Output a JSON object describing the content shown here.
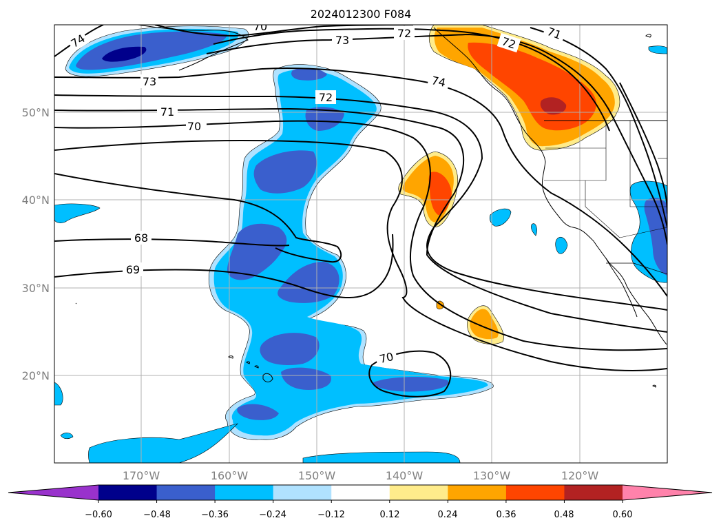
{
  "title": "2024012300 F084",
  "map": {
    "lat_labels": [
      "50°N",
      "40°N",
      "30°N",
      "20°N"
    ],
    "lon_labels": [
      "170°W",
      "160°W",
      "150°W",
      "140°W",
      "130°W",
      "120°W"
    ],
    "gridlines": true
  },
  "contours": {
    "color": "#000000",
    "labels": [
      "74",
      "73",
      "72",
      "71",
      "70",
      "72",
      "73",
      "74",
      "72",
      "71",
      "70",
      "68",
      "69",
      "70"
    ]
  },
  "colorbar": {
    "tick_labels": [
      "−0.60",
      "−0.48",
      "−0.36",
      "−0.24",
      "−0.12",
      "0.12",
      "0.24",
      "0.36",
      "0.48",
      "0.60"
    ],
    "colors": [
      "#9932cc",
      "#00008b",
      "#3a5fcd",
      "#00bfff",
      "#b0e2ff",
      "#ffffff",
      "#ffec8b",
      "#ffa500",
      "#ff4500",
      "#b22222",
      "#ff82ab"
    ],
    "extend": "both"
  },
  "fill_colors": {
    "light_blue": "#b0e2ff",
    "cyan": "#00bfff",
    "blue": "#3a5fcd",
    "navy": "#00008b",
    "yellow": "#ffec8b",
    "orange": "#ffa500",
    "red_orange": "#ff4500",
    "dark_red": "#b22222"
  }
}
